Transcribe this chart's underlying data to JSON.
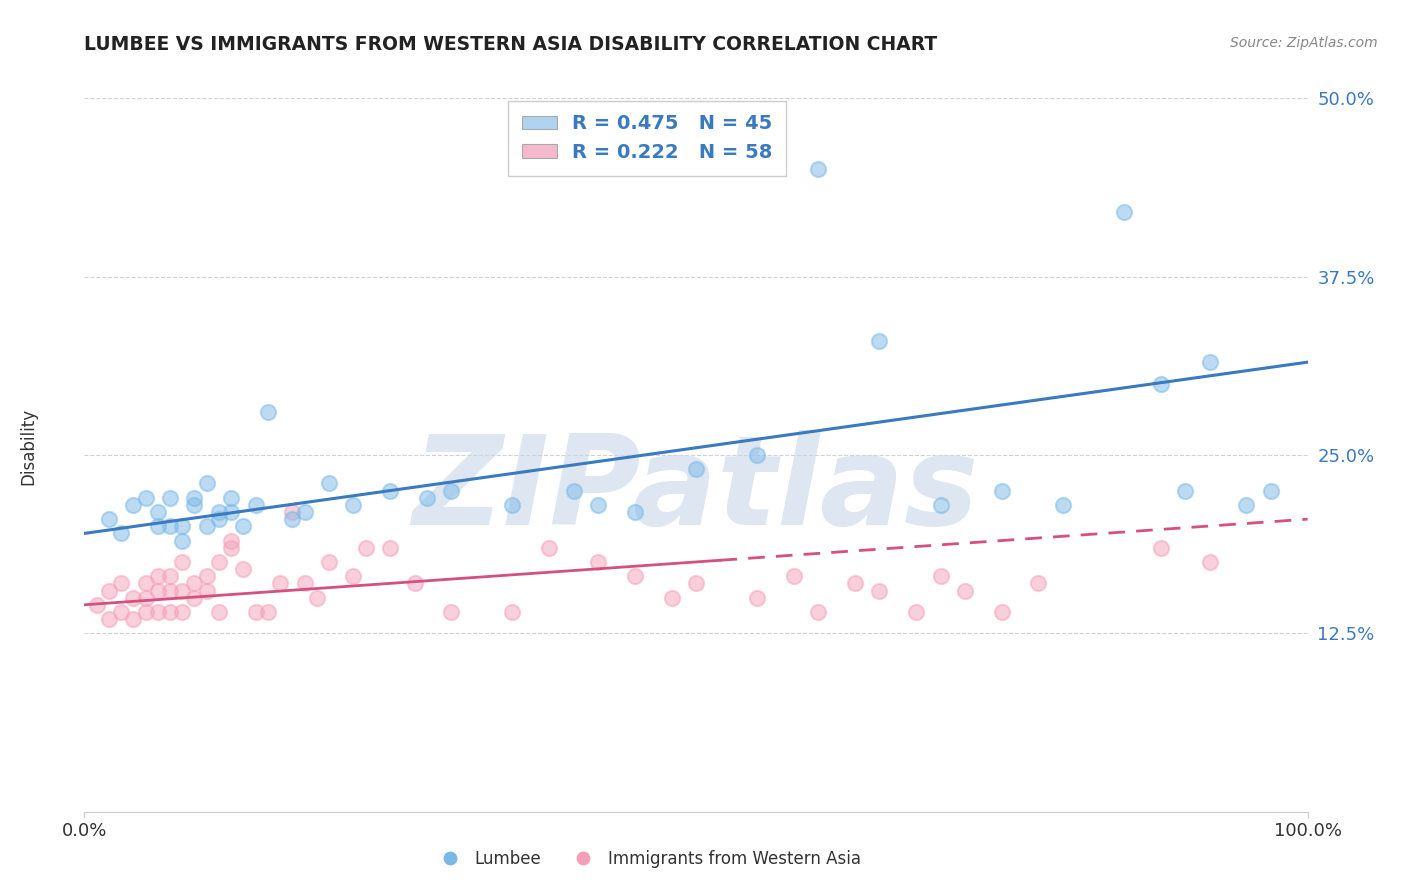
{
  "title": "LUMBEE VS IMMIGRANTS FROM WESTERN ASIA DISABILITY CORRELATION CHART",
  "source_text": "Source: ZipAtlas.com",
  "ylabel": "Disability",
  "xlim": [
    0.0,
    1.0
  ],
  "ylim": [
    0.0,
    0.5
  ],
  "x_tick_labels": [
    "0.0%",
    "100.0%"
  ],
  "y_ticks": [
    0.125,
    0.25,
    0.375,
    0.5
  ],
  "y_tick_labels": [
    "12.5%",
    "25.0%",
    "37.5%",
    "50.0%"
  ],
  "background_color": "#ffffff",
  "grid_color": "#cccccc",
  "watermark_text": "ZIPatlas",
  "watermark_color": "#c8d8e8",
  "lumbee_color": "#7ab8e8",
  "lumbee_patch_color": "#aed4f0",
  "immigrants_color": "#f5a0bb",
  "immigrants_patch_color": "#f5b8cc",
  "lumbee_line_color": "#3a7abf",
  "immigrants_line_color": "#d45080",
  "lumbee_R": 0.475,
  "lumbee_N": 45,
  "immigrants_R": 0.222,
  "immigrants_N": 58,
  "legend_label_lumbee": "Lumbee",
  "legend_label_immigrants": "Immigrants from Western Asia",
  "lumbee_scatter_x": [
    0.02,
    0.03,
    0.04,
    0.05,
    0.06,
    0.06,
    0.07,
    0.07,
    0.08,
    0.08,
    0.09,
    0.09,
    0.1,
    0.1,
    0.11,
    0.11,
    0.12,
    0.12,
    0.13,
    0.14,
    0.15,
    0.17,
    0.18,
    0.2,
    0.22,
    0.25,
    0.28,
    0.3,
    0.35,
    0.4,
    0.42,
    0.45,
    0.5,
    0.55,
    0.6,
    0.65,
    0.7,
    0.75,
    0.8,
    0.85,
    0.88,
    0.9,
    0.92,
    0.95,
    0.97
  ],
  "lumbee_scatter_y": [
    0.205,
    0.195,
    0.215,
    0.22,
    0.2,
    0.21,
    0.2,
    0.22,
    0.19,
    0.2,
    0.215,
    0.22,
    0.2,
    0.23,
    0.21,
    0.205,
    0.22,
    0.21,
    0.2,
    0.215,
    0.28,
    0.205,
    0.21,
    0.23,
    0.215,
    0.225,
    0.22,
    0.225,
    0.215,
    0.225,
    0.215,
    0.21,
    0.24,
    0.25,
    0.45,
    0.33,
    0.215,
    0.225,
    0.215,
    0.42,
    0.3,
    0.225,
    0.315,
    0.215,
    0.225
  ],
  "immigrants_scatter_x": [
    0.01,
    0.02,
    0.02,
    0.03,
    0.03,
    0.04,
    0.04,
    0.05,
    0.05,
    0.05,
    0.06,
    0.06,
    0.06,
    0.07,
    0.07,
    0.07,
    0.08,
    0.08,
    0.08,
    0.09,
    0.09,
    0.1,
    0.1,
    0.11,
    0.11,
    0.12,
    0.12,
    0.13,
    0.14,
    0.15,
    0.16,
    0.17,
    0.18,
    0.19,
    0.2,
    0.22,
    0.23,
    0.25,
    0.27,
    0.3,
    0.35,
    0.38,
    0.42,
    0.45,
    0.48,
    0.5,
    0.55,
    0.58,
    0.6,
    0.63,
    0.65,
    0.68,
    0.7,
    0.72,
    0.75,
    0.78,
    0.88,
    0.92
  ],
  "immigrants_scatter_y": [
    0.145,
    0.135,
    0.155,
    0.14,
    0.16,
    0.135,
    0.15,
    0.14,
    0.15,
    0.16,
    0.14,
    0.155,
    0.165,
    0.14,
    0.155,
    0.165,
    0.14,
    0.155,
    0.175,
    0.15,
    0.16,
    0.155,
    0.165,
    0.14,
    0.175,
    0.185,
    0.19,
    0.17,
    0.14,
    0.14,
    0.16,
    0.21,
    0.16,
    0.15,
    0.175,
    0.165,
    0.185,
    0.185,
    0.16,
    0.14,
    0.14,
    0.185,
    0.175,
    0.165,
    0.15,
    0.16,
    0.15,
    0.165,
    0.14,
    0.16,
    0.155,
    0.14,
    0.165,
    0.155,
    0.14,
    0.16,
    0.185,
    0.175
  ],
  "lumbee_trend_y_start": 0.195,
  "lumbee_trend_y_end": 0.315,
  "immigrants_trend_y_start": 0.145,
  "immigrants_trend_y_end": 0.205
}
